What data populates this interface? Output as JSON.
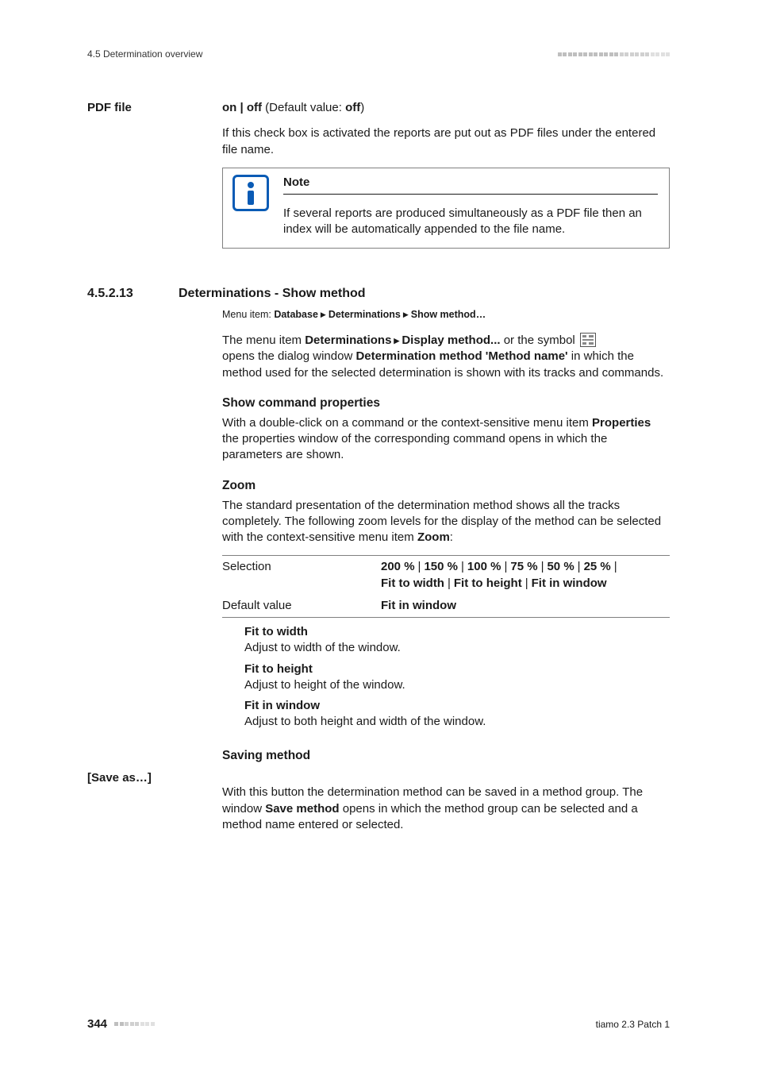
{
  "running_head": "4.5 Determination overview",
  "pdf_section": {
    "label": "PDF file",
    "onoff_line_a": "on | off",
    "onoff_line_b": " (Default value: ",
    "onoff_line_c": "off",
    "onoff_line_d": ")",
    "desc": "If this check box is activated the reports are put out as PDF files under the entered file name.",
    "note_title": "Note",
    "note_body": "If several reports are produced simultaneously as a PDF file then an index will be automatically appended to the file name."
  },
  "sec": {
    "num": "4.5.2.13",
    "title": "Determinations - Show method",
    "menu_prefix": "Menu item: ",
    "menu_a": "Database",
    "menu_b": "Determinations",
    "menu_c": "Show method…",
    "p1_a": "The menu item ",
    "p1_b": "Determinations",
    "p1_c": "Display method...",
    "p1_d": " or the symbol",
    "p1_e": "opens the dialog window ",
    "p1_f": "Determination method 'Method name'",
    "p1_g": " in which the method used for the selected determination is shown with its tracks and commands.",
    "show_cmd_head": "Show command properties",
    "show_cmd_p_a": "With a double-click on a command or the context-sensitive menu item ",
    "show_cmd_p_b": "Properties",
    "show_cmd_p_c": " the properties window of the corresponding command opens in which the parameters are shown.",
    "zoom_head": "Zoom",
    "zoom_p_a": "The standard presentation of the determination method shows all the tracks completely. The following zoom levels for the display of the method can be selected with the context-sensitive menu item ",
    "zoom_p_b": "Zoom",
    "zoom_p_c": ":",
    "tbl": {
      "selection_label": "Selection",
      "selection_vals": [
        "200 %",
        "150 %",
        "100 %",
        "75 %",
        "50 %",
        "25 %",
        "Fit to width",
        "Fit to height",
        "Fit in window"
      ],
      "default_label": "Default value",
      "default_val": "Fit in window"
    },
    "defs": [
      {
        "t": "Fit to width",
        "d": "Adjust to width of the window."
      },
      {
        "t": "Fit to height",
        "d": "Adjust to height of the window."
      },
      {
        "t": "Fit in window",
        "d": "Adjust to both height and width of the window."
      }
    ],
    "saving_head": "Saving method",
    "saveas_label": "[Save as…]",
    "saveas_p_a": "With this button the determination method can be saved in a method group. The window ",
    "saveas_p_b": "Save method",
    "saveas_p_c": " opens in which the method group can be selected and a method name entered or selected."
  },
  "footer": {
    "page": "344",
    "product": "tiamo 2.3 Patch 1"
  },
  "colors": {
    "text": "#1a1a1a",
    "icon_blue": "#0a5bb5",
    "rule_gray": "#808080",
    "dot_gray": "#bfbfbf"
  }
}
